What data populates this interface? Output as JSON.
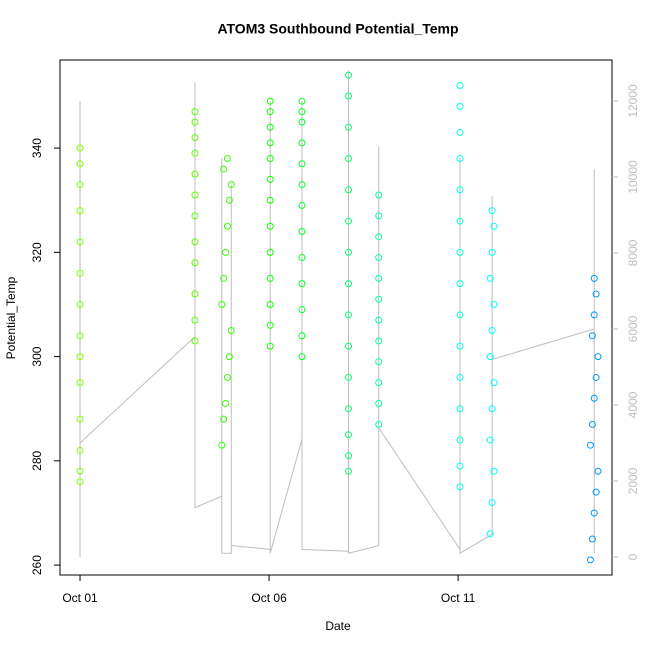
{
  "chart_data": {
    "type": "scatter",
    "title": "ATOM3 Southbound Potential_Temp",
    "x_label": "Date",
    "y_label": "Potential_Temp",
    "xlim": [
      0.47,
      15.07
    ],
    "xticks": [
      {
        "value": 1,
        "label": "Oct 01"
      },
      {
        "value": 6,
        "label": "Oct 06"
      },
      {
        "value": 11,
        "label": "Oct 11"
      }
    ],
    "ylim": [
      258.1,
      356.9
    ],
    "yticks": [
      260,
      280,
      300,
      320,
      340
    ],
    "y2lim": [
      -474,
      13079
    ],
    "y2ticks": [
      0,
      2000,
      4000,
      6000,
      8000,
      10000,
      12000
    ],
    "series": [
      {
        "color": "#80ff00",
        "x": [
          1,
          1,
          1,
          1,
          1,
          1,
          1,
          1,
          1,
          1,
          1,
          1,
          1,
          1
        ],
        "values": [
          276,
          278,
          282,
          288,
          295,
          300,
          304,
          310,
          316,
          322,
          328,
          333,
          337,
          340
        ]
      },
      {
        "color": "#5cff00",
        "x": [
          4.04,
          4.04,
          4.04,
          4.04,
          4.04,
          4.04,
          4.04,
          4.04,
          4.04,
          4.04,
          4.04,
          4.04
        ],
        "values": [
          303,
          307,
          312,
          318,
          322,
          327,
          331,
          335,
          339,
          342,
          345,
          347
        ]
      },
      {
        "color": "#33ff00",
        "x": [
          4.75,
          4.8,
          4.85,
          4.9,
          4.95,
          5.0,
          4.75,
          4.8,
          4.85,
          4.9,
          4.95,
          5.0,
          4.8,
          4.9
        ],
        "values": [
          283,
          288,
          291,
          296,
          300,
          305,
          310,
          315,
          320,
          325,
          330,
          333,
          336,
          338
        ]
      },
      {
        "color": "#0dff00",
        "x": [
          6.03,
          6.03,
          6.03,
          6.03,
          6.03,
          6.03,
          6.03,
          6.03,
          6.03,
          6.03,
          6.03,
          6.03,
          6.03
        ],
        "values": [
          302,
          306,
          310,
          315,
          320,
          325,
          330,
          334,
          338,
          341,
          344,
          347,
          349
        ]
      },
      {
        "color": "#00ff26",
        "x": [
          6.87,
          6.87,
          6.87,
          6.87,
          6.87,
          6.87,
          6.87,
          6.87,
          6.87,
          6.87,
          6.87,
          6.87,
          6.87
        ],
        "values": [
          300,
          304,
          309,
          314,
          319,
          324,
          329,
          333,
          337,
          341,
          345,
          347,
          349
        ]
      },
      {
        "color": "#00ff73",
        "x": [
          8.1,
          8.1,
          8.1,
          8.1,
          8.1,
          8.1,
          8.1,
          8.1,
          8.1,
          8.1,
          8.1,
          8.1,
          8.1,
          8.1,
          8.1
        ],
        "values": [
          278,
          281,
          285,
          290,
          296,
          302,
          308,
          314,
          320,
          326,
          332,
          338,
          344,
          350,
          354
        ]
      },
      {
        "color": "#00ff99",
        "x": [
          8.9,
          8.9,
          8.9,
          8.9,
          8.9,
          8.9,
          8.9,
          8.9,
          8.9,
          8.9,
          8.9,
          8.9
        ],
        "values": [
          287,
          291,
          295,
          299,
          303,
          307,
          311,
          315,
          319,
          323,
          327,
          331
        ]
      },
      {
        "color": "#00ffe6",
        "x": [
          11.05,
          11.05,
          11.05,
          11.05,
          11.05,
          11.05,
          11.05,
          11.05,
          11.05,
          11.05,
          11.05,
          11.05,
          11.05,
          11.05,
          11.05
        ],
        "values": [
          275,
          279,
          284,
          290,
          296,
          302,
          308,
          314,
          320,
          326,
          332,
          338,
          343,
          348,
          352
        ]
      },
      {
        "color": "#00ffff",
        "x": [
          11.85,
          11.9,
          11.95,
          11.85,
          11.9,
          11.95,
          11.85,
          11.9,
          11.95,
          11.85,
          11.9,
          11.95,
          11.9
        ],
        "values": [
          266,
          272,
          278,
          284,
          290,
          295,
          300,
          305,
          310,
          315,
          320,
          325,
          328
        ]
      },
      {
        "color": "#0099ff",
        "x": [
          14.5,
          14.55,
          14.6,
          14.65,
          14.7,
          14.5,
          14.55,
          14.6,
          14.65,
          14.7,
          14.55,
          14.6,
          14.65,
          14.6
        ],
        "values": [
          261,
          265,
          270,
          274,
          278,
          283,
          287,
          292,
          296,
          300,
          304,
          308,
          312,
          315
        ]
      }
    ],
    "line": {
      "axis": "y2",
      "color": "#bebebe",
      "x": [
        1,
        1,
        1,
        1,
        4.04,
        4.04,
        4.04,
        4.75,
        4.75,
        4.75,
        5.0,
        5.0,
        5.0,
        6.03,
        6.03,
        6.03,
        6.87,
        6.87,
        6.87,
        8.1,
        8.1,
        8.1,
        8.9,
        8.9,
        8.9,
        11.05,
        11.05,
        11.05,
        11.9,
        11.9,
        11.9,
        14.6,
        14.6,
        14.6
      ],
      "values": [
        0,
        12000,
        3000,
        3000,
        5800,
        12500,
        1300,
        1600,
        10500,
        100,
        100,
        9800,
        300,
        200,
        12000,
        100,
        3100,
        12000,
        200,
        150,
        12800,
        100,
        300,
        10800,
        3400,
        200,
        10500,
        100,
        600,
        9500,
        5200,
        6000,
        10200,
        100
      ]
    }
  }
}
